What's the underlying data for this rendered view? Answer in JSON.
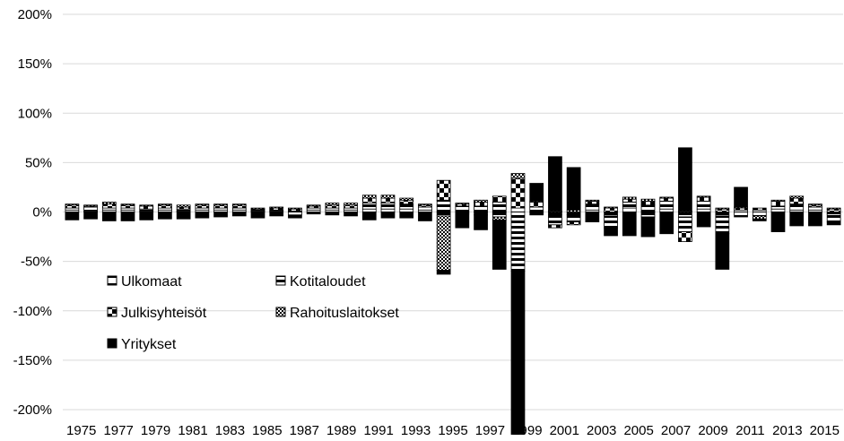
{
  "chart_data": {
    "type": "bar",
    "stacked": true,
    "title": "",
    "xlabel": "",
    "ylabel": "",
    "ylim": [
      -200,
      200
    ],
    "y_ticks": [
      "200%",
      "150%",
      "100%",
      "50%",
      "0%",
      "-50%",
      "-100%",
      "-150%",
      "-200%"
    ],
    "x_tick_labels": [
      "1975",
      "1977",
      "1979",
      "1981",
      "1983",
      "1985",
      "1987",
      "1989",
      "1991",
      "1993",
      "1995",
      "1997",
      "1999",
      "2001",
      "2003",
      "2005",
      "2007",
      "2009",
      "2011",
      "2013",
      "2015"
    ],
    "grid": "horizontal",
    "legend_position": "bottom-left inside",
    "categories": [
      "1975",
      "1976",
      "1977",
      "1978",
      "1979",
      "1980",
      "1981",
      "1982",
      "1983",
      "1984",
      "1985",
      "1986",
      "1987",
      "1988",
      "1989",
      "1990",
      "1991",
      "1992",
      "1993",
      "1994",
      "1995",
      "1996",
      "1997",
      "1998",
      "1999",
      "2000",
      "2001",
      "2002",
      "2003",
      "2004",
      "2005",
      "2006",
      "2007",
      "2008",
      "2009",
      "2010",
      "2011",
      "2012",
      "2013",
      "2014",
      "2015",
      "2016"
    ],
    "series": [
      {
        "name": "Ulkomaat",
        "pattern": "ulkomaat",
        "values": [
          2,
          1,
          2,
          2,
          1,
          2,
          1,
          2,
          2,
          2,
          1,
          1,
          1,
          2,
          2,
          2,
          3,
          3,
          3,
          2,
          -4,
          -2,
          -3,
          -5,
          4,
          -3,
          -3,
          -3,
          2,
          -4,
          4,
          -5,
          3,
          -5,
          3,
          -4,
          2,
          2,
          3,
          2,
          2,
          -2
        ]
      },
      {
        "name": "Kotitaloudet",
        "pattern": "kotitaloudet",
        "values": [
          2,
          4,
          2,
          2,
          2,
          2,
          2,
          2,
          2,
          2,
          1,
          1,
          -3,
          2,
          2,
          2,
          6,
          6,
          5,
          3,
          12,
          6,
          6,
          10,
          -60,
          5,
          -10,
          -7,
          6,
          -12,
          6,
          7,
          8,
          -15,
          8,
          -18,
          -5,
          -4,
          3,
          6,
          3,
          -8
        ]
      },
      {
        "name": "Julkisyhteisöt",
        "pattern": "julkisyhteisot",
        "values": [
          3,
          1,
          4,
          3,
          3,
          3,
          2,
          3,
          3,
          3,
          1,
          2,
          2,
          2,
          3,
          3,
          5,
          5,
          4,
          2,
          20,
          2,
          4,
          6,
          30,
          5,
          -3,
          -3,
          3,
          4,
          3,
          4,
          3,
          -10,
          4,
          3,
          2,
          2,
          5,
          6,
          2,
          3
        ]
      },
      {
        "name": "Rahoituslaitokset",
        "pattern": "rahoituslaitokset",
        "values": [
          1,
          1,
          2,
          1,
          1,
          1,
          2,
          1,
          1,
          1,
          1,
          1,
          1,
          1,
          2,
          2,
          3,
          3,
          2,
          1,
          -55,
          1,
          2,
          -3,
          5,
          1,
          1,
          2,
          1,
          1,
          2,
          2,
          1,
          1,
          1,
          1,
          1,
          -3,
          1,
          2,
          1,
          1
        ]
      },
      {
        "name": "Yritykset",
        "pattern": "yritykset",
        "values": [
          -8,
          -7,
          -9,
          -9,
          -8,
          -7,
          -7,
          -6,
          -5,
          -4,
          -6,
          -4,
          -3,
          -2,
          -3,
          -4,
          -8,
          -6,
          -6,
          -9,
          -4,
          -14,
          -15,
          -50,
          -165,
          18,
          55,
          43,
          -10,
          -8,
          -24,
          -20,
          -22,
          64,
          -15,
          -36,
          20,
          -2,
          -20,
          -14,
          -14,
          -3
        ]
      }
    ]
  },
  "legend": [
    {
      "label": "Ulkomaat",
      "pattern": "ulkomaat"
    },
    {
      "label": "Kotitaloudet",
      "pattern": "kotitaloudet"
    },
    {
      "label": "Julkisyhteisöt",
      "pattern": "julkisyhteisot"
    },
    {
      "label": "Rahoituslaitokset",
      "pattern": "rahoituslaitokset"
    },
    {
      "label": "Yritykset",
      "pattern": "yritykset"
    }
  ]
}
